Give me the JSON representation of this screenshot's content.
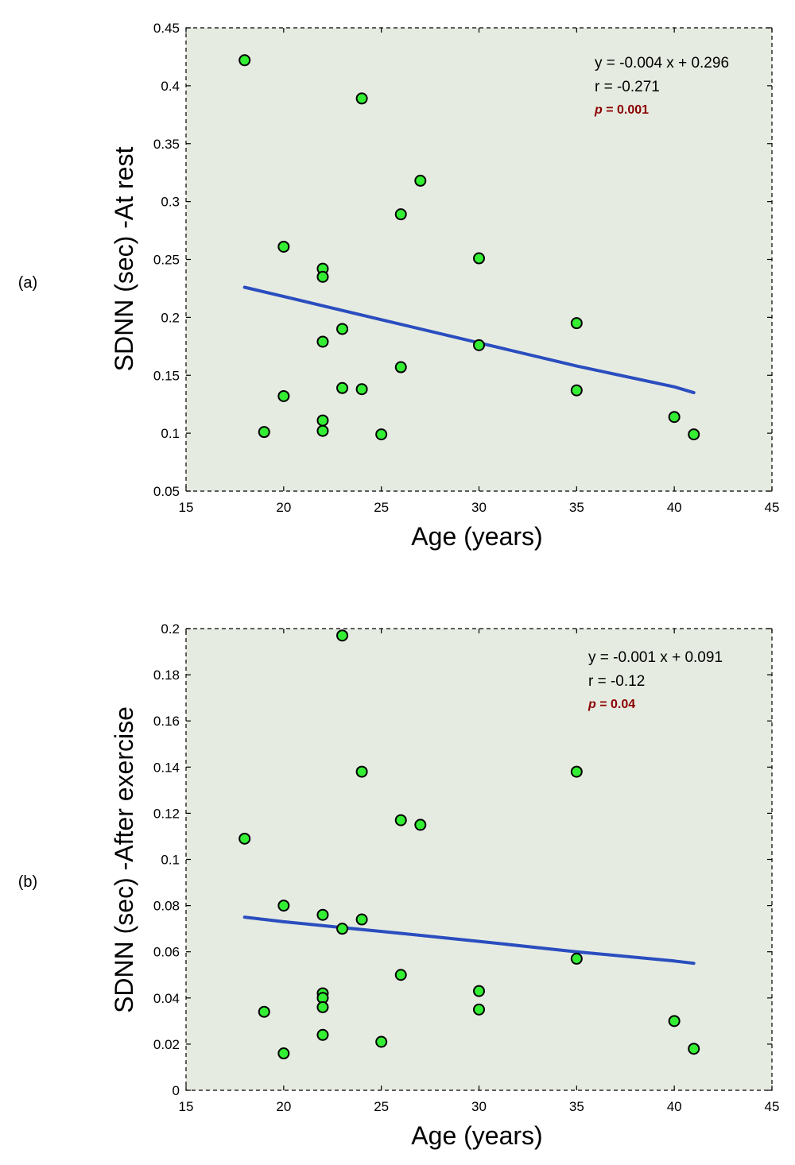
{
  "colors": {
    "plot_background": "#e6ebe1",
    "marker_fill": "#33ee33",
    "marker_edge": "#000000",
    "fit_line": "#2a4dbf",
    "p_value": "#8b0000"
  },
  "chart_data": [
    {
      "type": "scatter",
      "panel_label": "(a)",
      "xlabel": "Age (years)",
      "ylabel": "SDNN (sec) -At rest",
      "xlim": [
        15,
        45
      ],
      "ylim": [
        0.05,
        0.45
      ],
      "xticks": [
        15,
        20,
        25,
        30,
        35,
        40,
        45
      ],
      "yticks": [
        0.05,
        0.1,
        0.15,
        0.2,
        0.25,
        0.3,
        0.35,
        0.4,
        0.45
      ],
      "xtick_labels": [
        "15",
        "20",
        "25",
        "30",
        "35",
        "40",
        "45"
      ],
      "ytick_labels": [
        "0.05",
        "0.1",
        "0.15",
        "0.2",
        "0.25",
        "0.3",
        "0.35",
        "0.4",
        "0.45"
      ],
      "grid": false,
      "points": [
        {
          "x": 18,
          "y": 0.422
        },
        {
          "x": 19,
          "y": 0.101
        },
        {
          "x": 20,
          "y": 0.261
        },
        {
          "x": 20,
          "y": 0.132
        },
        {
          "x": 22,
          "y": 0.242
        },
        {
          "x": 22,
          "y": 0.235
        },
        {
          "x": 22,
          "y": 0.179
        },
        {
          "x": 22,
          "y": 0.111
        },
        {
          "x": 22,
          "y": 0.102
        },
        {
          "x": 23,
          "y": 0.19
        },
        {
          "x": 23,
          "y": 0.139
        },
        {
          "x": 24,
          "y": 0.389
        },
        {
          "x": 24,
          "y": 0.138
        },
        {
          "x": 25,
          "y": 0.099
        },
        {
          "x": 26,
          "y": 0.289
        },
        {
          "x": 26,
          "y": 0.157
        },
        {
          "x": 27,
          "y": 0.318
        },
        {
          "x": 30,
          "y": 0.251
        },
        {
          "x": 30,
          "y": 0.176
        },
        {
          "x": 35,
          "y": 0.195
        },
        {
          "x": 35,
          "y": 0.137
        },
        {
          "x": 40,
          "y": 0.114
        },
        {
          "x": 41,
          "y": 0.099
        }
      ],
      "fit_line": [
        {
          "x": 18,
          "y": 0.226
        },
        {
          "x": 20,
          "y": 0.218
        },
        {
          "x": 22,
          "y": 0.21
        },
        {
          "x": 25,
          "y": 0.198
        },
        {
          "x": 30,
          "y": 0.178
        },
        {
          "x": 35,
          "y": 0.158
        },
        {
          "x": 40,
          "y": 0.14
        },
        {
          "x": 41,
          "y": 0.135
        }
      ],
      "annotation": {
        "equation": "y = -0.004 x + 0.296",
        "r": "r = -0.271",
        "p_label": "p",
        "p_rest": " = 0.001"
      }
    },
    {
      "type": "scatter",
      "panel_label": "(b)",
      "xlabel": "Age (years)",
      "ylabel": "SDNN (sec) -After exercise",
      "xlim": [
        15,
        45
      ],
      "ylim": [
        0,
        0.2
      ],
      "xticks": [
        15,
        20,
        25,
        30,
        35,
        40,
        45
      ],
      "yticks": [
        0,
        0.02,
        0.04,
        0.06,
        0.08,
        0.1,
        0.12,
        0.14,
        0.16,
        0.18,
        0.2
      ],
      "xtick_labels": [
        "15",
        "20",
        "25",
        "30",
        "35",
        "40",
        "45"
      ],
      "ytick_labels": [
        "0",
        "0.02",
        "0.04",
        "0.06",
        "0.08",
        "0.1",
        "0.12",
        "0.14",
        "0.16",
        "0.18",
        "0.2"
      ],
      "grid": false,
      "points": [
        {
          "x": 18,
          "y": 0.109
        },
        {
          "x": 19,
          "y": 0.034
        },
        {
          "x": 20,
          "y": 0.08
        },
        {
          "x": 20,
          "y": 0.016
        },
        {
          "x": 22,
          "y": 0.076
        },
        {
          "x": 22,
          "y": 0.042
        },
        {
          "x": 22,
          "y": 0.04
        },
        {
          "x": 22,
          "y": 0.036
        },
        {
          "x": 22,
          "y": 0.024
        },
        {
          "x": 23,
          "y": 0.197
        },
        {
          "x": 23,
          "y": 0.07
        },
        {
          "x": 24,
          "y": 0.138
        },
        {
          "x": 24,
          "y": 0.074
        },
        {
          "x": 25,
          "y": 0.021
        },
        {
          "x": 26,
          "y": 0.117
        },
        {
          "x": 26,
          "y": 0.05
        },
        {
          "x": 27,
          "y": 0.115
        },
        {
          "x": 30,
          "y": 0.043
        },
        {
          "x": 30,
          "y": 0.035
        },
        {
          "x": 35,
          "y": 0.138
        },
        {
          "x": 35,
          "y": 0.057
        },
        {
          "x": 40,
          "y": 0.03
        },
        {
          "x": 41,
          "y": 0.018
        }
      ],
      "fit_line": [
        {
          "x": 18,
          "y": 0.075
        },
        {
          "x": 20,
          "y": 0.073
        },
        {
          "x": 23,
          "y": 0.0705
        },
        {
          "x": 26,
          "y": 0.068
        },
        {
          "x": 30,
          "y": 0.0645
        },
        {
          "x": 35,
          "y": 0.06
        },
        {
          "x": 40,
          "y": 0.056
        },
        {
          "x": 41,
          "y": 0.055
        }
      ],
      "annotation": {
        "equation": "y = -0.001 x + 0.091",
        "r": "r = -0.12",
        "p_label": "p",
        "p_rest": " = 0.04"
      }
    }
  ]
}
